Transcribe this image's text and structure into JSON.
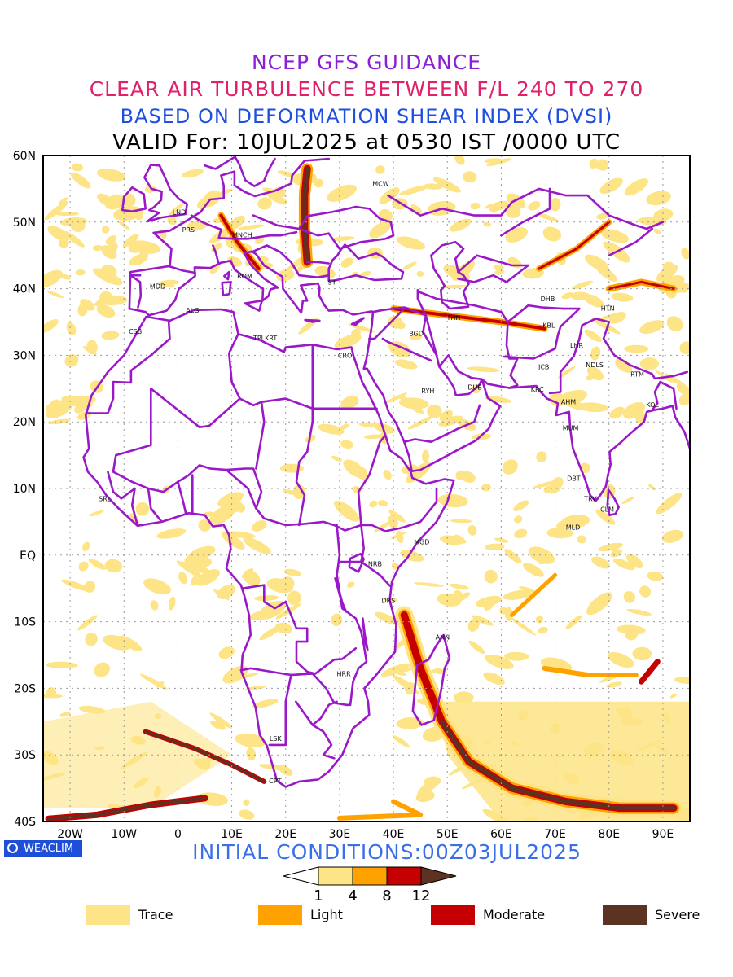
{
  "titles": {
    "line1": "NCEP GFS GUIDANCE",
    "line2": "CLEAR AIR TURBULENCE BETWEEN F/L 240 TO 270",
    "line3": "BASED ON DEFORMATION SHEAR INDEX (DVSI)",
    "line4": "VALID For: 10JUL2025 at 0530 IST /0000 UTC"
  },
  "colors": {
    "line1": "#8a1fd6",
    "line2": "#e0206a",
    "line3": "#1f4fe0",
    "initial_conditions": "#3b6fe8",
    "borders": "#9a18c8",
    "trace": "#fde486",
    "light": "#ffa200",
    "moderate": "#c40000",
    "severe": "#5c3222"
  },
  "map": {
    "lat_labels": [
      "60N",
      "50N",
      "40N",
      "30N",
      "20N",
      "10N",
      "EQ",
      "10S",
      "20S",
      "30S",
      "40S"
    ],
    "lon_labels": [
      "20W",
      "10W",
      "0",
      "10E",
      "20E",
      "30E",
      "40E",
      "50E",
      "60E",
      "70E",
      "80E",
      "90E"
    ],
    "station_labels": [
      {
        "code": "MCW",
        "lon": 37.6,
        "lat": 55.8
      },
      {
        "code": "LND",
        "lon": 0.5,
        "lat": 51.5
      },
      {
        "code": "PRS",
        "lon": 2.3,
        "lat": 48.9
      },
      {
        "code": "MNCH",
        "lon": 11.6,
        "lat": 48.1
      },
      {
        "code": "MDD",
        "lon": -3.7,
        "lat": 40.4
      },
      {
        "code": "ROM",
        "lon": 12.5,
        "lat": 41.9
      },
      {
        "code": "IST",
        "lon": 29.0,
        "lat": 41.0
      },
      {
        "code": "ALG",
        "lon": 3.0,
        "lat": 36.8
      },
      {
        "code": "CSB",
        "lon": -7.6,
        "lat": 33.6
      },
      {
        "code": "TPLKRT",
        "lon": 15.5,
        "lat": 32.6
      },
      {
        "code": "BGD",
        "lon": 44.4,
        "lat": 33.3
      },
      {
        "code": "THN",
        "lon": 51.4,
        "lat": 35.7
      },
      {
        "code": "DHB",
        "lon": 68.8,
        "lat": 38.5
      },
      {
        "code": "HTN",
        "lon": 80.0,
        "lat": 37.1
      },
      {
        "code": "KBL",
        "lon": 69.2,
        "lat": 34.5
      },
      {
        "code": "LHR",
        "lon": 74.3,
        "lat": 31.5
      },
      {
        "code": "CRO",
        "lon": 31.2,
        "lat": 30.0
      },
      {
        "code": "RYH",
        "lon": 46.7,
        "lat": 24.7
      },
      {
        "code": "DUB",
        "lon": 55.3,
        "lat": 25.2
      },
      {
        "code": "JCB",
        "lon": 68.4,
        "lat": 28.3
      },
      {
        "code": "NDLS",
        "lon": 77.2,
        "lat": 28.6
      },
      {
        "code": "RTM",
        "lon": 85.5,
        "lat": 27.2
      },
      {
        "code": "KRC",
        "lon": 67.0,
        "lat": 24.9
      },
      {
        "code": "AHM",
        "lon": 72.6,
        "lat": 23.0
      },
      {
        "code": "KOL",
        "lon": 88.4,
        "lat": 22.6
      },
      {
        "code": "MUM",
        "lon": 72.9,
        "lat": 19.1
      },
      {
        "code": "DBT",
        "lon": 73.7,
        "lat": 11.5
      },
      {
        "code": "SRL",
        "lon": -13.2,
        "lat": 8.5
      },
      {
        "code": "TRV",
        "lon": 76.9,
        "lat": 8.5
      },
      {
        "code": "CLM",
        "lon": 79.9,
        "lat": 6.9
      },
      {
        "code": "MLD",
        "lon": 73.5,
        "lat": 4.2
      },
      {
        "code": "MGD",
        "lon": 45.3,
        "lat": 2.0
      },
      {
        "code": "NRB",
        "lon": 36.8,
        "lat": -1.3
      },
      {
        "code": "DRS",
        "lon": 39.3,
        "lat": -6.8
      },
      {
        "code": "ANN",
        "lon": 49.3,
        "lat": -12.3
      },
      {
        "code": "HRR",
        "lon": 31.0,
        "lat": -17.8
      },
      {
        "code": "LSK",
        "lon": 18.5,
        "lat": -27.5
      },
      {
        "code": "CPT",
        "lon": 18.4,
        "lat": -33.9
      }
    ]
  },
  "logo": "WEACLIM",
  "initial_conditions": "INITIAL CONDITIONS:00Z03JUL2025",
  "colorbar": {
    "ticks": [
      "1",
      "4",
      "8",
      "12"
    ]
  },
  "legend": [
    {
      "label": "Trace",
      "color": "#fde486"
    },
    {
      "label": "Light",
      "color": "#ffa200"
    },
    {
      "label": "Moderate",
      "color": "#c40000"
    },
    {
      "label": "Severe",
      "color": "#5c3222"
    }
  ]
}
